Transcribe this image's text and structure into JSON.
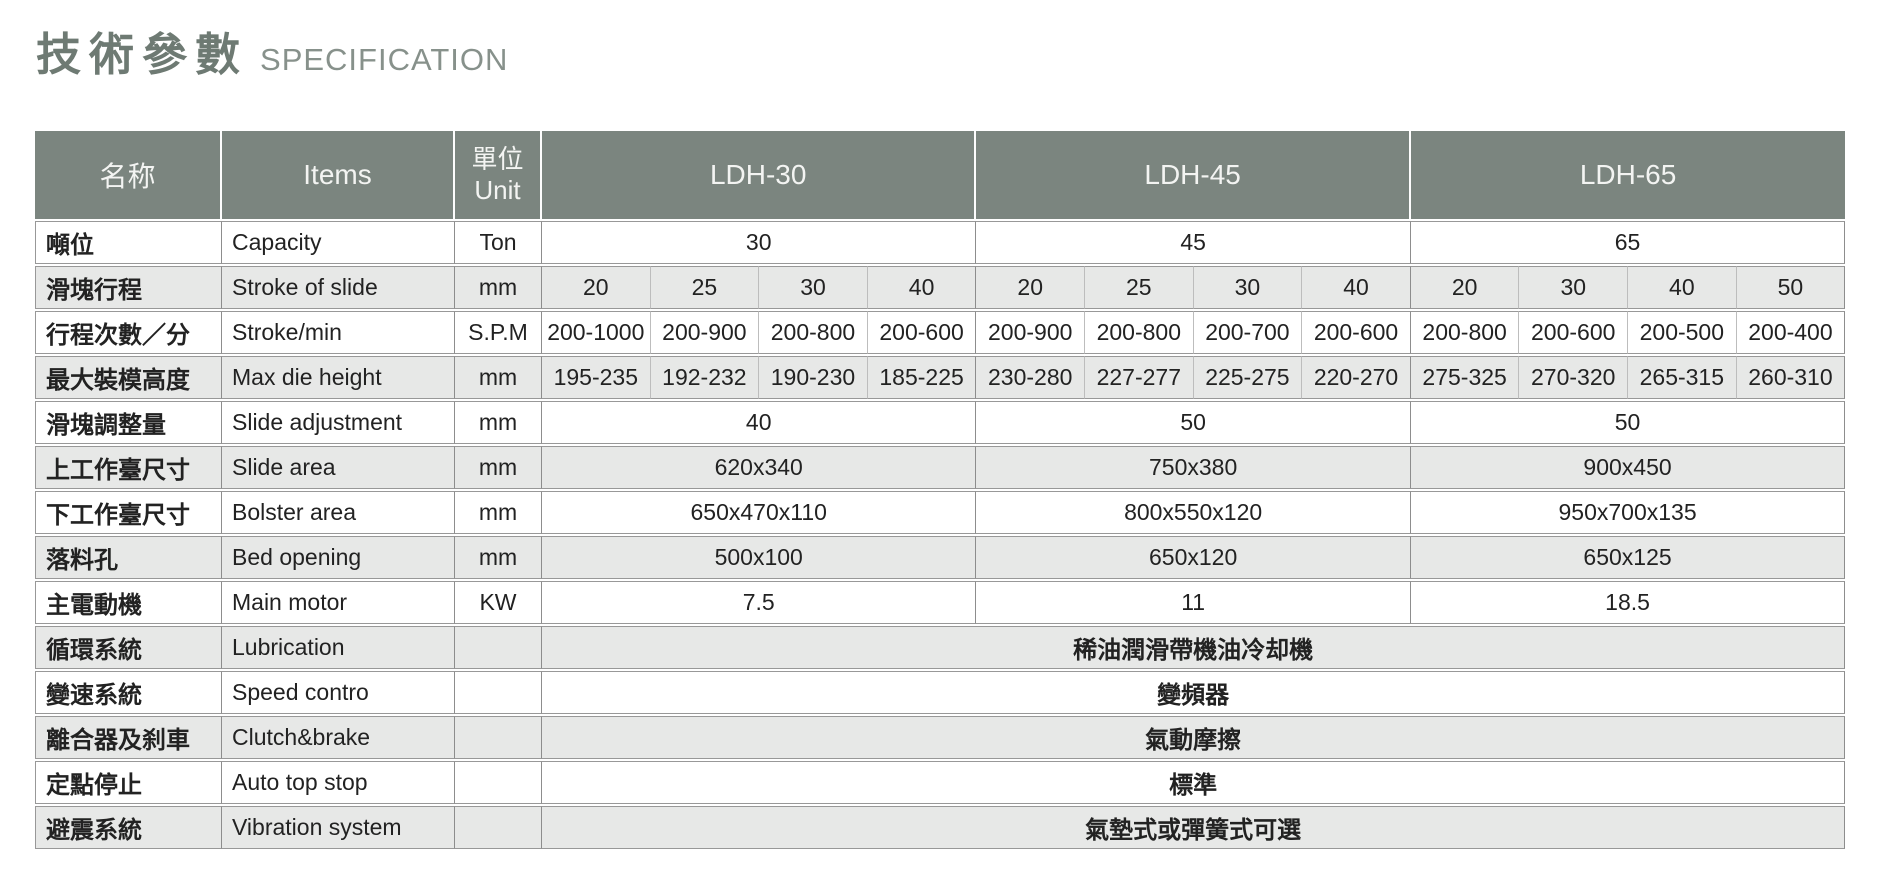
{
  "page": {
    "title_zh": "技術參數",
    "title_en": "SPECIFICATION"
  },
  "colors": {
    "header_bg": "#7b857f",
    "header_text": "#f3f4f2",
    "row_stripe": "#e7e8e7",
    "title_zh": "#6e7a73",
    "title_en": "#87918b"
  },
  "table": {
    "header": {
      "name_zh": "名称",
      "items": "Items",
      "unit_zh": "單位",
      "unit_en": "Unit",
      "models": [
        "LDH-30",
        "LDH-45",
        "LDH-65"
      ]
    },
    "rows": [
      {
        "name_zh": "噸位",
        "item": "Capacity",
        "unit": "Ton",
        "span": "group",
        "values": [
          "30",
          "45",
          "65"
        ]
      },
      {
        "name_zh": "滑塊行程",
        "item": "Stroke of slide",
        "unit": "mm",
        "span": "each",
        "values": [
          "20",
          "25",
          "30",
          "40",
          "20",
          "25",
          "30",
          "40",
          "20",
          "30",
          "40",
          "50"
        ]
      },
      {
        "name_zh": "行程次數／分",
        "item": "Stroke/min",
        "unit": "S.P.M",
        "span": "each",
        "values": [
          "200-1000",
          "200-900",
          "200-800",
          "200-600",
          "200-900",
          "200-800",
          "200-700",
          "200-600",
          "200-800",
          "200-600",
          "200-500",
          "200-400"
        ]
      },
      {
        "name_zh": "最大裝模高度",
        "item": "Max die height",
        "unit": "mm",
        "span": "each",
        "values": [
          "195-235",
          "192-232",
          "190-230",
          "185-225",
          "230-280",
          "227-277",
          "225-275",
          "220-270",
          "275-325",
          "270-320",
          "265-315",
          "260-310"
        ]
      },
      {
        "name_zh": "滑塊調整量",
        "item": "Slide adjustment",
        "unit": "mm",
        "span": "group",
        "values": [
          "40",
          "50",
          "50"
        ]
      },
      {
        "name_zh": "上工作臺尺寸",
        "item": "Slide area",
        "unit": "mm",
        "span": "group",
        "values": [
          "620x340",
          "750x380",
          "900x450"
        ]
      },
      {
        "name_zh": "下工作臺尺寸",
        "item": "Bolster area",
        "unit": "mm",
        "span": "group",
        "values": [
          "650x470x110",
          "800x550x120",
          "950x700x135"
        ]
      },
      {
        "name_zh": "落料孔",
        "item": "Bed opening",
        "unit": "mm",
        "span": "group",
        "values": [
          "500x100",
          "650x120",
          "650x125"
        ]
      },
      {
        "name_zh": "主電動機",
        "item": "Main motor",
        "unit": "KW",
        "span": "group",
        "values": [
          "7.5",
          "11",
          "18.5"
        ]
      },
      {
        "name_zh": "循環系統",
        "item": "Lubrication",
        "unit": "",
        "span": "full",
        "values": [
          "稀油潤滑帶機油冷却機"
        ]
      },
      {
        "name_zh": "變速系統",
        "item": "Speed contro",
        "unit": "",
        "span": "full",
        "values": [
          "變頻器"
        ]
      },
      {
        "name_zh": "離合器及刹車",
        "item": "Clutch&brake",
        "unit": "",
        "span": "full",
        "values": [
          "氣動摩擦"
        ]
      },
      {
        "name_zh": "定點停止",
        "item": "Auto top stop",
        "unit": "",
        "span": "full",
        "values": [
          "標準"
        ]
      },
      {
        "name_zh": "避震系統",
        "item": "Vibration system",
        "unit": "",
        "span": "full",
        "values": [
          "氣墊式或彈簧式可選"
        ]
      }
    ]
  }
}
